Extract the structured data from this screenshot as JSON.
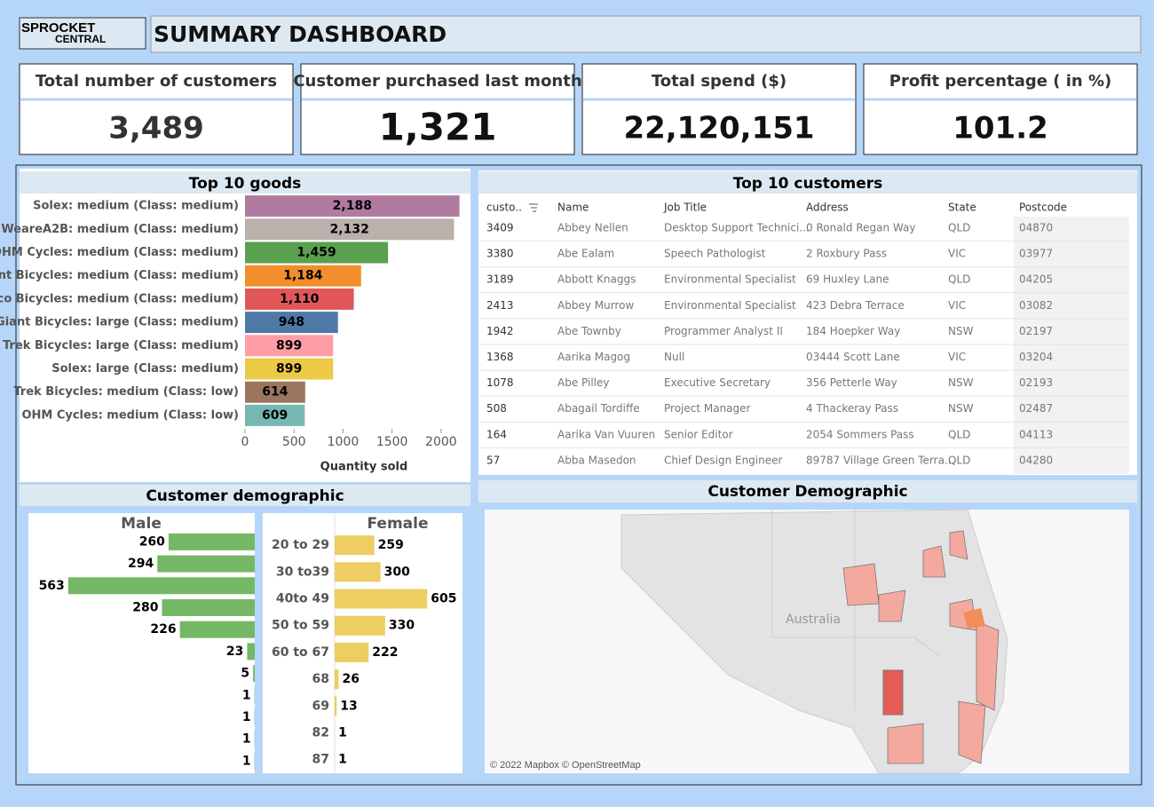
{
  "header": {
    "logo": [
      "SPROCKET",
      "CENTRAL"
    ],
    "title": "SUMMARY DASHBOARD"
  },
  "kpis": [
    {
      "title": "Total number of customers",
      "value": "3,489"
    },
    {
      "title": "Customer purchased last month",
      "value": "1,321"
    },
    {
      "title": "Total spend ($)",
      "value": "22,120,151"
    },
    {
      "title": "Profit percentage ( in %)",
      "value": "101.2"
    }
  ],
  "chart_data": [
    {
      "type": "bar",
      "orientation": "horizontal",
      "title": "Top 10 goods",
      "x_label": "Quantity sold",
      "label_position": "inside",
      "categories": [
        "Solex: medium (Class: medium)",
        "WeareA2B: medium (Class: medium)",
        "OHM Cycles: medium (Class: medium)",
        "Giant Bicycles: medium (Class: medium)",
        "Norco Bicycles: medium (Class: medium)",
        "Giant Bicycles: large (Class: medium)",
        "Trek Bicycles: large (Class: medium)",
        "Solex: large (Class: medium)",
        "Trek Bicycles: medium (Class: low)",
        "OHM Cycles: medium (Class: low)"
      ],
      "values": [
        2188,
        2132,
        1459,
        1184,
        1110,
        948,
        899,
        899,
        614,
        609
      ],
      "value_labels": [
        "2,188",
        "2,132",
        "1,459",
        "1,184",
        "1,110",
        "948",
        "899",
        "899",
        "614",
        "609"
      ],
      "colors": [
        "#b07aa1",
        "#bab0ac",
        "#59a14f",
        "#f28e2b",
        "#e15759",
        "#4e79a7",
        "#ff9da7",
        "#edc948",
        "#9c755f",
        "#76b7b2"
      ],
      "xlim": [
        0,
        2300
      ],
      "xticks": [
        0,
        500,
        1000,
        1500,
        2000
      ]
    },
    {
      "type": "bar",
      "orientation": "horizontal",
      "title": "Customer demographic",
      "subtitle": "Male",
      "x_reversed": true,
      "label_position": "outside",
      "categories": [
        null,
        null,
        null,
        null,
        null,
        null,
        null,
        null,
        null,
        null,
        null
      ],
      "values": [
        260,
        294,
        563,
        280,
        226,
        23,
        5,
        1,
        1,
        1,
        1
      ],
      "color": "#74b866",
      "xlim": [
        0,
        683
      ]
    },
    {
      "type": "bar",
      "orientation": "horizontal",
      "subtitle": "Female",
      "label_position": "outside",
      "categories": [
        "20 to 29",
        "30 to39",
        "40to 49",
        "50 to 59",
        "60 to 67",
        "68",
        "69",
        "82",
        "87"
      ],
      "values": [
        259,
        300,
        605,
        330,
        222,
        26,
        13,
        1,
        1
      ],
      "color": "#eecd62",
      "xlim": [
        0,
        830
      ]
    }
  ],
  "table": {
    "title": "Top 10 customers",
    "columns": [
      "custo..",
      "Name",
      "Job Title",
      "Address",
      "State",
      "Postcode"
    ],
    "rows": [
      [
        "3409",
        "Abbey Nellen",
        "Desktop Support Technici...",
        "0 Ronald Regan Way",
        "QLD",
        "04870"
      ],
      [
        "3380",
        "Abe Ealam",
        "Speech Pathologist",
        "2 Roxbury Pass",
        "VIC",
        "03977"
      ],
      [
        "3189",
        "Abbott Knaggs",
        "Environmental Specialist",
        "69 Huxley Lane",
        "QLD",
        "04205"
      ],
      [
        "2413",
        "Abbey Murrow",
        "Environmental Specialist",
        "423 Debra Terrace",
        "VIC",
        "03082"
      ],
      [
        "1942",
        "Abe Townby",
        "Programmer Analyst II",
        "184 Hoepker Way",
        "NSW",
        "02197"
      ],
      [
        "1368",
        "Aarika Magog",
        "Null",
        "03444 Scott Lane",
        "VIC",
        "03204"
      ],
      [
        "1078",
        "Abe Pilley",
        "Executive Secretary",
        "356 Petterle Way",
        "NSW",
        "02193"
      ],
      [
        "508",
        "Abagail Tordiffe",
        "Project Manager",
        "4 Thackeray Pass",
        "NSW",
        "02487"
      ],
      [
        "164",
        "Aarika Van Vuuren",
        "Senior Editor",
        "2054 Sommers Pass",
        "QLD",
        "04113"
      ],
      [
        "57",
        "Abba Masedon",
        "Chief Design Engineer",
        "89787 Village Green Terra...",
        "QLD",
        "04280"
      ]
    ]
  },
  "map": {
    "title": "Customer Demographic",
    "label": "Australia",
    "credit": "© 2022 Mapbox © OpenStreetMap"
  }
}
